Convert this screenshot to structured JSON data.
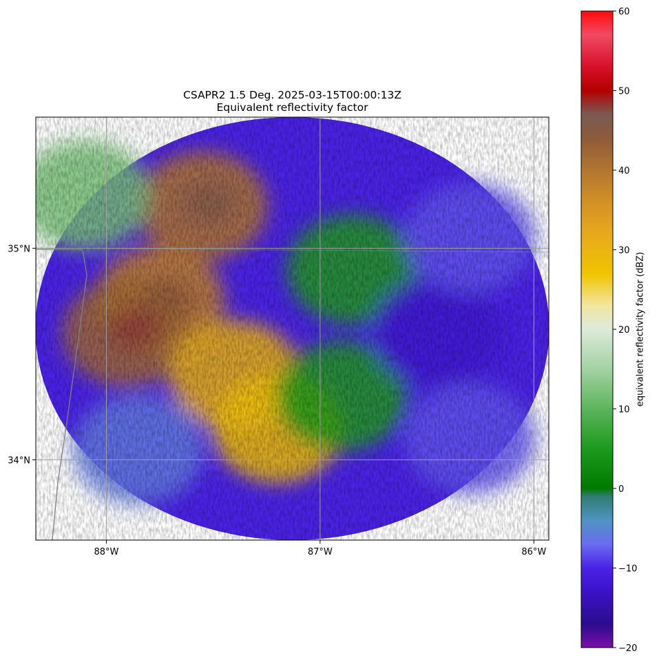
{
  "title": {
    "line1": "CSAPR2 1.5 Deg. 2025-03-15T00:00:13Z",
    "line2": "Equivalent reflectivity factor"
  },
  "map": {
    "lon_range": [
      -88.33,
      -85.93
    ],
    "lat_range": [
      33.62,
      35.62
    ],
    "x_ticks": [
      {
        "lon": -88,
        "label": "88°W"
      },
      {
        "lon": -87,
        "label": "87°W"
      },
      {
        "lon": -86,
        "label": "86°W"
      }
    ],
    "y_ticks": [
      {
        "lat": 35,
        "label": "35°N"
      },
      {
        "lat": 34,
        "label": "34°N"
      }
    ],
    "gridlines": true,
    "radar_center": {
      "lon": -87.0,
      "lat": 34.62
    },
    "features": [
      "state border"
    ]
  },
  "colorbar": {
    "label": "equivalent reflectivity factor (dBZ)",
    "min": -20,
    "max": 60,
    "ticks": [
      -20,
      -10,
      0,
      10,
      20,
      30,
      40,
      50,
      60
    ],
    "tick_labels": [
      "−20",
      "−10",
      "0",
      "10",
      "20",
      "30",
      "40",
      "50",
      "60"
    ],
    "colors": [
      {
        "v": -20,
        "c": "#7a0fa6"
      },
      {
        "v": -17,
        "c": "#2a0c8c"
      },
      {
        "v": -13,
        "c": "#3c12c8"
      },
      {
        "v": -10,
        "c": "#4a22e6"
      },
      {
        "v": -7,
        "c": "#6a6cf2"
      },
      {
        "v": -4,
        "c": "#4f94c0"
      },
      {
        "v": -1,
        "c": "#2f7d72"
      },
      {
        "v": 0,
        "c": "#007a00"
      },
      {
        "v": 5,
        "c": "#1c9a1c"
      },
      {
        "v": 10,
        "c": "#5cb45c"
      },
      {
        "v": 15,
        "c": "#a3d2a3"
      },
      {
        "v": 20,
        "c": "#ddeada"
      },
      {
        "v": 23,
        "c": "#f2e6a0"
      },
      {
        "v": 27,
        "c": "#f0c400"
      },
      {
        "v": 32,
        "c": "#e8a81c"
      },
      {
        "v": 36,
        "c": "#d39024"
      },
      {
        "v": 40,
        "c": "#b27630"
      },
      {
        "v": 44,
        "c": "#8e5a3a"
      },
      {
        "v": 47,
        "c": "#7a5a54"
      },
      {
        "v": 50,
        "c": "#b30000"
      },
      {
        "v": 53,
        "c": "#d8102a"
      },
      {
        "v": 57,
        "c": "#f24a64"
      },
      {
        "v": 60,
        "c": "#ff0a0a"
      }
    ]
  },
  "chart_data": {
    "type": "heatmap",
    "title": "CSAPR2 1.5 Deg. 2025-03-15T00:00:13Z",
    "subtitle": "Equivalent reflectivity factor",
    "xlabel": "",
    "ylabel": "",
    "colorbar_label": "equivalent reflectivity factor (dBZ)",
    "value_range": [
      -20,
      60
    ],
    "x_tick_labels": [
      "88°W",
      "87°W",
      "86°W"
    ],
    "y_tick_labels": [
      "35°N",
      "34°N"
    ],
    "regions": [
      {
        "lon": -87.75,
        "lat": 34.75,
        "dbz": 38
      },
      {
        "lon": -87.55,
        "lat": 35.2,
        "dbz": 40
      },
      {
        "lon": -87.9,
        "lat": 34.6,
        "dbz": 42
      },
      {
        "lon": -87.4,
        "lat": 34.4,
        "dbz": 30
      },
      {
        "lon": -87.2,
        "lat": 34.15,
        "dbz": 28
      },
      {
        "lon": -88.1,
        "lat": 35.25,
        "dbz": 12
      },
      {
        "lon": -87.85,
        "lat": 34.05,
        "dbz": -6
      },
      {
        "lon": -86.85,
        "lat": 34.9,
        "dbz": 5
      },
      {
        "lon": -86.9,
        "lat": 34.3,
        "dbz": 5
      },
      {
        "lon": -86.45,
        "lat": 34.6,
        "dbz": -12
      },
      {
        "lon": -86.3,
        "lat": 35.05,
        "dbz": -8
      },
      {
        "lon": -86.3,
        "lat": 34.1,
        "dbz": -8
      }
    ]
  }
}
